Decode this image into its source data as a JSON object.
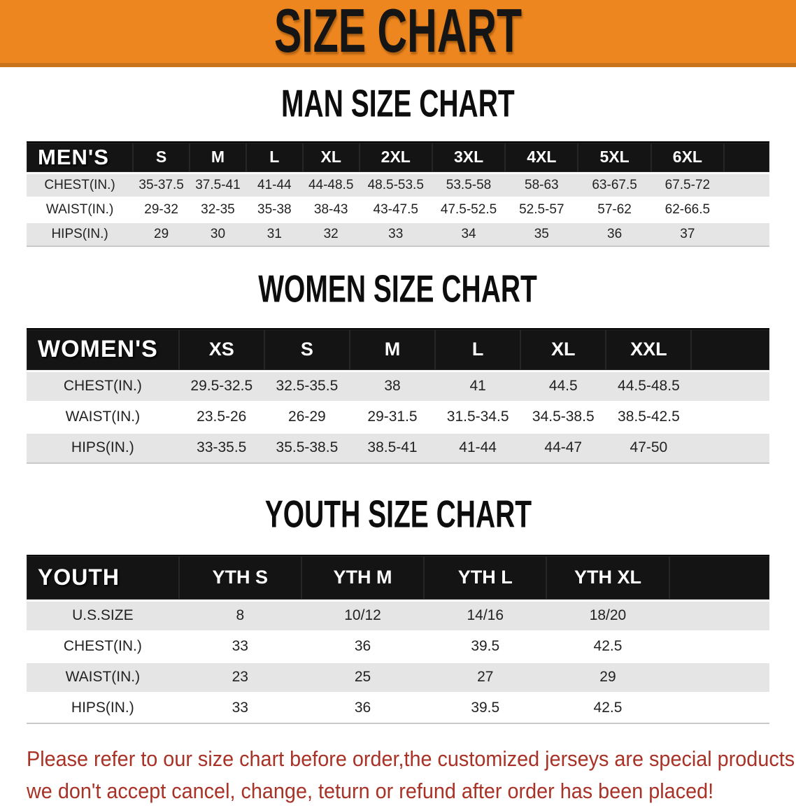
{
  "banner": {
    "title": "SIZE CHART"
  },
  "colors": {
    "banner_bg": "#ED861F",
    "banner_edge": "#C9731A",
    "table_header_bg": "#141414",
    "row_alt_bg": "#E5E5E5",
    "disclaimer_text": "#A93226"
  },
  "sections": [
    {
      "heading": "MAN SIZE CHART",
      "label": "MEN'S",
      "columns": [
        "S",
        "M",
        "L",
        "XL",
        "2XL",
        "3XL",
        "4XL",
        "5XL",
        "6XL"
      ],
      "rows": [
        {
          "label": "CHEST(IN.)",
          "values": [
            "35-37.5",
            "37.5-41",
            "41-44",
            "44-48.5",
            "48.5-53.5",
            "53.5-58",
            "58-63",
            "63-67.5",
            "67.5-72"
          ]
        },
        {
          "label": "WAIST(IN.)",
          "values": [
            "29-32",
            "32-35",
            "35-38",
            "38-43",
            "43-47.5",
            "47.5-52.5",
            "52.5-57",
            "57-62",
            "62-66.5"
          ]
        },
        {
          "label": "HIPS(IN.)",
          "values": [
            "29",
            "30",
            "31",
            "32",
            "33",
            "34",
            "35",
            "36",
            "37"
          ]
        }
      ]
    },
    {
      "heading": "WOMEN SIZE CHART",
      "label": "WOMEN'S",
      "columns": [
        "XS",
        "S",
        "M",
        "L",
        "XL",
        "XXL"
      ],
      "rows": [
        {
          "label": "CHEST(IN.)",
          "values": [
            "29.5-32.5",
            "32.5-35.5",
            "38",
            "41",
            "44.5",
            "44.5-48.5"
          ]
        },
        {
          "label": "WAIST(IN.)",
          "values": [
            "23.5-26",
            "26-29",
            "29-31.5",
            "31.5-34.5",
            "34.5-38.5",
            "38.5-42.5"
          ]
        },
        {
          "label": "HIPS(IN.)",
          "values": [
            "33-35.5",
            "35.5-38.5",
            "38.5-41",
            "41-44",
            "44-47",
            "47-50"
          ]
        }
      ]
    },
    {
      "heading": "YOUTH SIZE CHART",
      "label": "YOUTH",
      "columns": [
        "YTH S",
        "YTH M",
        "YTH L",
        "YTH XL"
      ],
      "rows": [
        {
          "label": "U.S.SIZE",
          "values": [
            "8",
            "10/12",
            "14/16",
            "18/20"
          ]
        },
        {
          "label": "CHEST(IN.)",
          "values": [
            "33",
            "36",
            "39.5",
            "42.5"
          ]
        },
        {
          "label": "WAIST(IN.)",
          "values": [
            "23",
            "25",
            "27",
            "29"
          ]
        },
        {
          "label": "HIPS(IN.)",
          "values": [
            "33",
            "36",
            "39.5",
            "42.5"
          ]
        }
      ]
    }
  ],
  "disclaimer": {
    "line1": "Please refer to our size chart before order,the customized jerseys are special products,",
    "line2": "we don't accept cancel, change, teturn or refund after order has been placed!"
  }
}
